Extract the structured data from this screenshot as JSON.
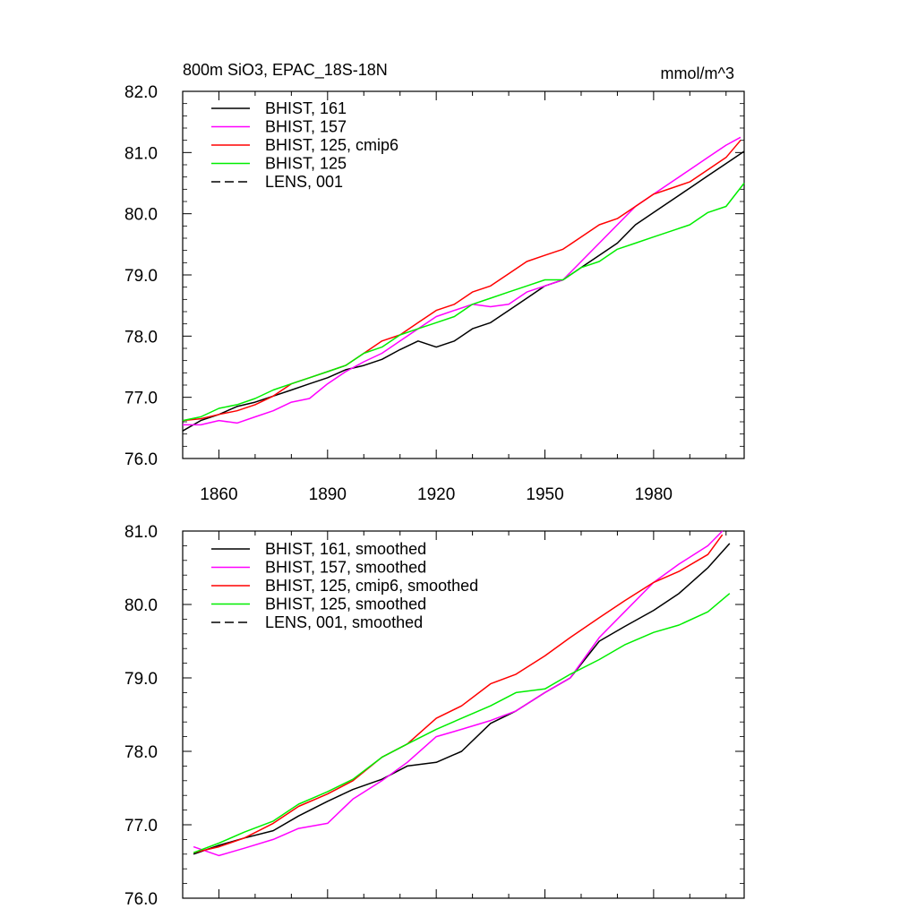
{
  "figure": {
    "title": "800m SiO3, EPAC_18S-18N",
    "units": "mmol/m^3"
  },
  "chart_data": [
    {
      "type": "line",
      "xlabel": "",
      "ylabel": "",
      "xlim": [
        1850,
        2005
      ],
      "ylim": [
        76.0,
        82.0
      ],
      "x_ticks": [
        1860,
        1890,
        1920,
        1950,
        1980
      ],
      "x_tick_labels": [
        "1860",
        "1890",
        "1920",
        "1950",
        "1980"
      ],
      "y_ticks": [
        76.0,
        77.0,
        78.0,
        79.0,
        80.0,
        81.0,
        82.0
      ],
      "y_tick_labels": [
        "76.0",
        "77.0",
        "78.0",
        "79.0",
        "80.0",
        "81.0",
        "82.0"
      ],
      "legend_position": "top-left",
      "series": [
        {
          "name": "BHIST, 161",
          "color": "#000000",
          "dash": "solid",
          "x": [
            1850,
            1855,
            1860,
            1865,
            1870,
            1875,
            1880,
            1885,
            1890,
            1895,
            1900,
            1905,
            1910,
            1915,
            1920,
            1925,
            1930,
            1935,
            1940,
            1945,
            1950,
            1955,
            1960,
            1965,
            1970,
            1975,
            1980,
            1985,
            1990,
            1995,
            2000,
            2005
          ],
          "values": [
            76.45,
            76.62,
            76.72,
            76.85,
            76.92,
            77.02,
            77.12,
            77.22,
            77.32,
            77.45,
            77.52,
            77.62,
            77.78,
            77.92,
            77.82,
            77.92,
            78.12,
            78.22,
            78.42,
            78.62,
            78.82,
            78.92,
            79.12,
            79.32,
            79.52,
            79.82,
            80.02,
            80.22,
            80.42,
            80.62,
            80.82,
            81.02
          ]
        },
        {
          "name": "BHIST, 157",
          "color": "#ff00ff",
          "dash": "solid",
          "x": [
            1850,
            1855,
            1860,
            1865,
            1870,
            1875,
            1880,
            1885,
            1890,
            1895,
            1900,
            1905,
            1910,
            1915,
            1920,
            1925,
            1930,
            1935,
            1940,
            1945,
            1950,
            1955,
            1960,
            1965,
            1970,
            1975,
            1980,
            1985,
            1990,
            1995,
            2000,
            2004
          ],
          "values": [
            76.55,
            76.55,
            76.62,
            76.58,
            76.68,
            76.78,
            76.92,
            76.98,
            77.22,
            77.42,
            77.58,
            77.72,
            77.92,
            78.12,
            78.32,
            78.42,
            78.52,
            78.48,
            78.52,
            78.72,
            78.82,
            78.92,
            79.22,
            79.52,
            79.82,
            80.12,
            80.32,
            80.52,
            80.72,
            80.92,
            81.12,
            81.25
          ]
        },
        {
          "name": "BHIST, 125, cmip6",
          "color": "#ff0000",
          "dash": "solid",
          "x": [
            1850,
            1855,
            1860,
            1865,
            1870,
            1875,
            1880,
            1885,
            1890,
            1895,
            1900,
            1905,
            1910,
            1915,
            1920,
            1925,
            1930,
            1935,
            1940,
            1945,
            1950,
            1955,
            1960,
            1965,
            1970,
            1975,
            1980,
            1985,
            1990,
            1995,
            2000,
            2004
          ],
          "values": [
            76.62,
            76.65,
            76.72,
            76.78,
            76.88,
            77.02,
            77.22,
            77.32,
            77.42,
            77.52,
            77.72,
            77.92,
            78.02,
            78.22,
            78.42,
            78.52,
            78.72,
            78.82,
            79.02,
            79.22,
            79.32,
            79.42,
            79.62,
            79.82,
            79.92,
            80.12,
            80.32,
            80.42,
            80.52,
            80.72,
            80.92,
            81.2
          ]
        },
        {
          "name": "BHIST, 125",
          "color": "#00ee00",
          "dash": "solid",
          "x": [
            1850,
            1855,
            1860,
            1865,
            1870,
            1875,
            1880,
            1885,
            1890,
            1895,
            1900,
            1905,
            1910,
            1915,
            1920,
            1925,
            1930,
            1935,
            1940,
            1945,
            1950,
            1955,
            1960,
            1965,
            1970,
            1975,
            1980,
            1985,
            1990,
            1995,
            2000,
            2005
          ],
          "values": [
            76.62,
            76.68,
            76.82,
            76.88,
            76.98,
            77.12,
            77.22,
            77.32,
            77.42,
            77.52,
            77.72,
            77.82,
            78.02,
            78.12,
            78.22,
            78.32,
            78.52,
            78.62,
            78.72,
            78.82,
            78.92,
            78.92,
            79.12,
            79.22,
            79.42,
            79.52,
            79.62,
            79.72,
            79.82,
            80.02,
            80.12,
            80.5
          ]
        },
        {
          "name": "LENS, 001",
          "color": "#000000",
          "dash": "dashed",
          "x": [],
          "values": []
        }
      ]
    },
    {
      "type": "line",
      "xlabel": "",
      "ylabel": "",
      "xlim": [
        1850,
        2005
      ],
      "ylim": [
        76.0,
        81.0
      ],
      "x_ticks": [
        1860,
        1890,
        1920,
        1950,
        1980
      ],
      "x_tick_labels": [],
      "y_ticks": [
        76.0,
        77.0,
        78.0,
        79.0,
        80.0,
        81.0
      ],
      "y_tick_labels": [
        "76.0",
        "77.0",
        "78.0",
        "79.0",
        "80.0",
        "81.0"
      ],
      "legend_position": "top-left",
      "series": [
        {
          "name": "BHIST, 161, smoothed",
          "color": "#000000",
          "dash": "solid",
          "x": [
            1853,
            1860,
            1867,
            1875,
            1882,
            1890,
            1897,
            1905,
            1912,
            1920,
            1927,
            1935,
            1942,
            1950,
            1957,
            1965,
            1972,
            1980,
            1987,
            1995,
            2001
          ],
          "values": [
            76.6,
            76.72,
            76.82,
            76.92,
            77.12,
            77.32,
            77.48,
            77.62,
            77.8,
            77.85,
            78.0,
            78.38,
            78.55,
            78.8,
            79.0,
            79.5,
            79.7,
            79.92,
            80.15,
            80.5,
            80.83
          ]
        },
        {
          "name": "BHIST, 157, smoothed",
          "color": "#ff00ff",
          "dash": "solid",
          "x": [
            1853,
            1860,
            1867,
            1875,
            1882,
            1890,
            1897,
            1905,
            1912,
            1920,
            1927,
            1935,
            1942,
            1950,
            1957,
            1965,
            1972,
            1980,
            1987,
            1995,
            1999
          ],
          "values": [
            76.7,
            76.58,
            76.68,
            76.8,
            76.95,
            77.02,
            77.35,
            77.6,
            77.85,
            78.2,
            78.3,
            78.42,
            78.55,
            78.8,
            79.0,
            79.55,
            79.9,
            80.3,
            80.55,
            80.8,
            81.0
          ]
        },
        {
          "name": "BHIST, 125, cmip6, smoothed",
          "color": "#ff0000",
          "dash": "solid",
          "x": [
            1853,
            1860,
            1867,
            1875,
            1882,
            1890,
            1897,
            1905,
            1912,
            1920,
            1927,
            1935,
            1942,
            1950,
            1957,
            1965,
            1972,
            1980,
            1987,
            1995,
            1999
          ],
          "values": [
            76.62,
            76.7,
            76.82,
            77.02,
            77.25,
            77.42,
            77.6,
            77.92,
            78.1,
            78.45,
            78.62,
            78.92,
            79.05,
            79.3,
            79.55,
            79.82,
            80.05,
            80.3,
            80.45,
            80.68,
            80.95
          ]
        },
        {
          "name": "BHIST, 125, smoothed",
          "color": "#00ee00",
          "dash": "solid",
          "x": [
            1853,
            1860,
            1867,
            1875,
            1882,
            1890,
            1897,
            1905,
            1912,
            1920,
            1927,
            1935,
            1942,
            1950,
            1957,
            1965,
            1972,
            1980,
            1987,
            1995,
            2001
          ],
          "values": [
            76.62,
            76.75,
            76.9,
            77.05,
            77.28,
            77.45,
            77.62,
            77.92,
            78.1,
            78.3,
            78.45,
            78.62,
            78.8,
            78.85,
            79.05,
            79.25,
            79.45,
            79.62,
            79.72,
            79.9,
            80.15
          ]
        },
        {
          "name": "LENS, 001, smoothed",
          "color": "#000000",
          "dash": "dashed",
          "x": [],
          "values": []
        }
      ]
    }
  ]
}
